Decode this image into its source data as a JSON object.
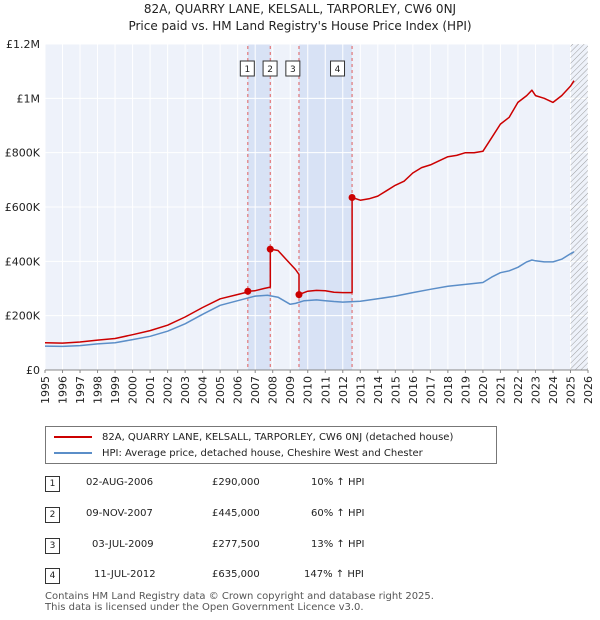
{
  "title_line1": "82A, QUARRY LANE, KELSALL, TARPORLEY, CW6 0NJ",
  "title_line2": "Price paid vs. HM Land Registry's House Price Index (HPI)",
  "chart_data": {
    "type": "line",
    "xlim": [
      1995,
      2026
    ],
    "ylim": [
      0,
      1200000
    ],
    "y_ticks": [
      0,
      200000,
      400000,
      600000,
      800000,
      1000000,
      1200000
    ],
    "y_tick_labels": [
      "£0",
      "£200K",
      "£400K",
      "£600K",
      "£800K",
      "£1M",
      "£1.2M"
    ],
    "x_ticks": [
      1995,
      1996,
      1997,
      1998,
      1999,
      2000,
      2001,
      2002,
      2003,
      2004,
      2005,
      2006,
      2007,
      2008,
      2009,
      2010,
      2011,
      2012,
      2013,
      2014,
      2015,
      2016,
      2017,
      2018,
      2019,
      2020,
      2021,
      2022,
      2023,
      2024,
      2025,
      2026
    ],
    "hatch_from": 2025.0,
    "shaded_bands": [
      [
        2006.58,
        2007.86
      ],
      [
        2009.5,
        2012.53
      ]
    ],
    "series": [
      {
        "name": "82A, QUARRY LANE, KELSALL, TARPORLEY, CW6 0NJ (detached house)",
        "color": "#cc0000",
        "x": [
          1995.0,
          1996.0,
          1997.0,
          1998.0,
          1999.0,
          2000.0,
          2001.0,
          2002.0,
          2003.0,
          2004.0,
          2005.0,
          2006.0,
          2006.58,
          2006.58,
          2007.0,
          2007.5,
          2007.86,
          2007.86,
          2008.3,
          2008.8,
          2009.3,
          2009.5,
          2009.5,
          2010.0,
          2010.5,
          2011.0,
          2011.5,
          2012.0,
          2012.53,
          2012.53,
          2013.0,
          2013.5,
          2014.0,
          2014.5,
          2015.0,
          2015.5,
          2016.0,
          2016.5,
          2017.0,
          2017.5,
          2018.0,
          2018.5,
          2019.0,
          2019.5,
          2020.0,
          2020.5,
          2021.0,
          2021.5,
          2022.0,
          2022.5,
          2022.8,
          2023.0,
          2023.5,
          2024.0,
          2024.5,
          2025.0,
          2025.2
        ],
        "values": [
          100000,
          99000,
          103000,
          110000,
          116000,
          130000,
          145000,
          165000,
          195000,
          230000,
          262000,
          278000,
          287000,
          290000,
          292000,
          300000,
          305000,
          445000,
          440000,
          405000,
          370000,
          352000,
          277500,
          290000,
          293000,
          292000,
          286000,
          285000,
          285000,
          635000,
          625000,
          630000,
          640000,
          660000,
          680000,
          695000,
          725000,
          745000,
          755000,
          770000,
          785000,
          790000,
          800000,
          800000,
          805000,
          855000,
          905000,
          930000,
          985000,
          1010000,
          1030000,
          1010000,
          1000000,
          985000,
          1010000,
          1045000,
          1065000
        ]
      },
      {
        "name": "HPI: Average price, detached house, Cheshire West and Chester",
        "color": "#5b8ec8",
        "x": [
          1995.0,
          1996.0,
          1997.0,
          1998.0,
          1999.0,
          2000.0,
          2001.0,
          2002.0,
          2003.0,
          2004.0,
          2005.0,
          2006.0,
          2007.0,
          2007.7,
          2008.3,
          2009.0,
          2009.3,
          2009.8,
          2010.5,
          2011.0,
          2011.5,
          2012.0,
          2013.0,
          2014.0,
          2015.0,
          2016.0,
          2017.0,
          2018.0,
          2019.0,
          2020.0,
          2020.5,
          2021.0,
          2021.5,
          2022.0,
          2022.5,
          2022.8,
          2023.0,
          2023.5,
          2024.0,
          2024.5,
          2025.0,
          2025.2
        ],
        "values": [
          88000,
          87000,
          90000,
          96000,
          100000,
          112000,
          124000,
          143000,
          170000,
          205000,
          238000,
          255000,
          272000,
          275000,
          268000,
          242000,
          245000,
          255000,
          258000,
          255000,
          252000,
          250000,
          253000,
          262000,
          272000,
          285000,
          297000,
          308000,
          315000,
          322000,
          342000,
          358000,
          365000,
          378000,
          398000,
          405000,
          402000,
          398000,
          398000,
          408000,
          428000,
          435000
        ]
      }
    ],
    "sales": [
      {
        "num": "1",
        "date": "02-AUG-2006",
        "price": "£290,000",
        "hpi": "10% ↑ HPI",
        "x": 2006.58,
        "y": 290000
      },
      {
        "num": "2",
        "date": "09-NOV-2007",
        "price": "£445,000",
        "hpi": "60% ↑ HPI",
        "x": 2007.86,
        "y": 445000
      },
      {
        "num": "3",
        "date": "03-JUL-2009",
        "price": "£277,500",
        "hpi": "13% ↑ HPI",
        "x": 2009.5,
        "y": 277500
      },
      {
        "num": "4",
        "date": "11-JUL-2012",
        "price": "£635,000",
        "hpi": "147% ↑ HPI",
        "x": 2012.53,
        "y": 635000
      }
    ]
  },
  "legend": {
    "items": [
      {
        "label": "82A, QUARRY LANE, KELSALL, TARPORLEY, CW6 0NJ (detached house)",
        "color": "#cc0000"
      },
      {
        "label": "HPI: Average price, detached house, Cheshire West and Chester",
        "color": "#5b8ec8"
      }
    ]
  },
  "footer": {
    "line1": "Contains HM Land Registry data © Crown copyright and database right 2025.",
    "line2": "This data is licensed under the Open Government Licence v3.0."
  }
}
